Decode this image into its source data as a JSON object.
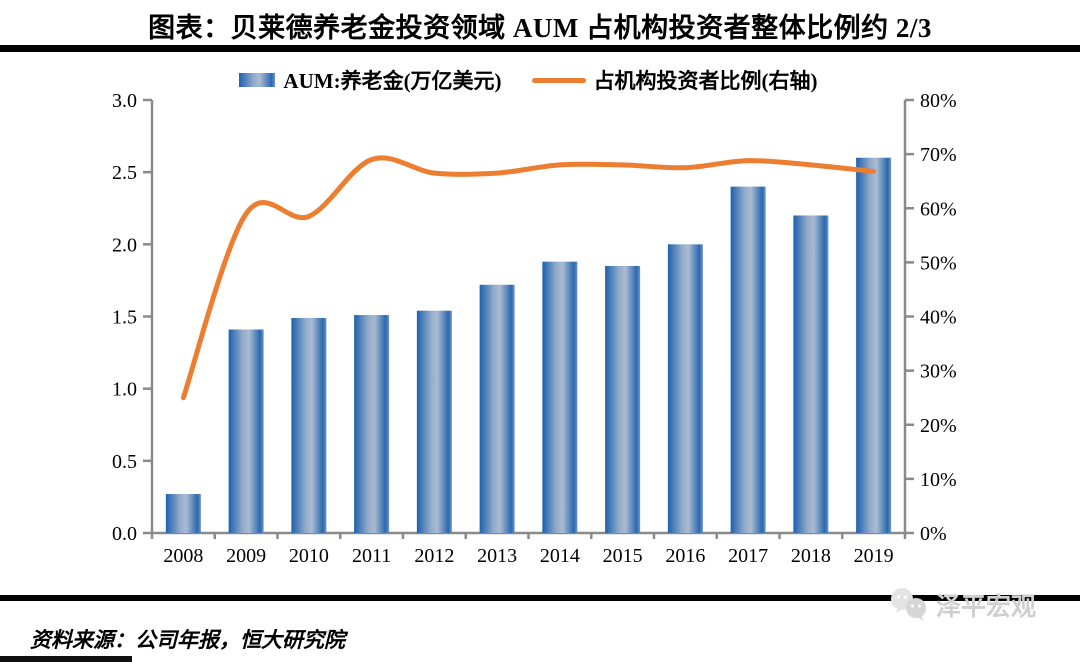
{
  "title": "图表：贝莱德养老金投资领域 AUM 占机构投资者整体比例约 2/3",
  "legend": {
    "bar_label": "AUM:养老金(万亿美元)",
    "line_label": "占机构投资者比例(右轴)"
  },
  "chart_data": {
    "type": "bar+line combo",
    "title": "贝莱德养老金投资领域AUM占机构投资者整体比例约2/3",
    "categories": [
      "2008",
      "2009",
      "2010",
      "2011",
      "2012",
      "2013",
      "2014",
      "2015",
      "2016",
      "2017",
      "2018",
      "2019"
    ],
    "series": [
      {
        "name": "AUM:养老金(万亿美元)",
        "type": "bar",
        "axis": "left",
        "values": [
          0.27,
          1.41,
          1.49,
          1.51,
          1.54,
          1.72,
          1.88,
          1.85,
          2.0,
          2.4,
          2.2,
          2.6
        ]
      },
      {
        "name": "占机构投资者比例(右轴)",
        "type": "line",
        "axis": "right",
        "values": [
          25,
          59,
          58.5,
          69,
          66.5,
          66.5,
          68,
          68,
          67.5,
          68.8,
          68,
          66.8
        ]
      }
    ],
    "left_axis": {
      "min": 0,
      "max": 3.0,
      "step": 0.5,
      "tick_labels": [
        "3.0",
        "2.5",
        "2.0",
        "1.5",
        "1.0",
        "0.5",
        "0.0"
      ]
    },
    "right_axis": {
      "min": 0,
      "max": 80,
      "step": 10,
      "tick_labels": [
        "80%",
        "70%",
        "60%",
        "50%",
        "40%",
        "30%",
        "20%",
        "10%",
        "0%"
      ]
    },
    "grid": false,
    "legend_position": "top",
    "colors": {
      "bar_edge": "#1d61af",
      "bar_center": "#aabbd1",
      "line": "#ED7D31",
      "axis": "#8a8a8a",
      "text": "#000000"
    }
  },
  "footer": {
    "source": "资料来源：公司年报，恒大研究院",
    "watermark": "泽平宏观"
  },
  "icons": {
    "watermark_icon": "wechat-icon"
  }
}
